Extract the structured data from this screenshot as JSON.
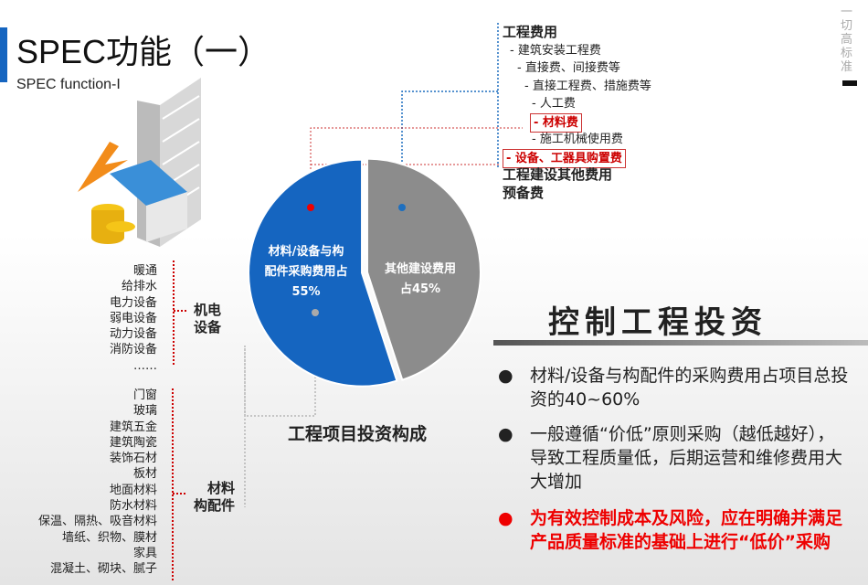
{
  "title": "SPEC功能（一）",
  "subtitle": "SPEC function-I",
  "slogan": "一切高标准",
  "cost_tree": [
    {
      "text": "工程费用",
      "style": "b",
      "indent": 0
    },
    {
      "text": "- 建筑安装工程费",
      "style": "",
      "indent": 1
    },
    {
      "text": "- 直接费、间接费等",
      "style": "",
      "indent": 2
    },
    {
      "text": "- 直接工程费、措施费等",
      "style": "",
      "indent": 3
    },
    {
      "text": "- 人工费",
      "style": "",
      "indent": 4
    },
    {
      "text": "- 材料费",
      "style": "r",
      "indent": 4
    },
    {
      "text": "- 施工机械使用费",
      "style": "",
      "indent": 4
    },
    {
      "text": "- 设备、工器具购置费",
      "style": "r",
      "indent": 0
    },
    {
      "text": "工程建设其他费用",
      "style": "b",
      "indent": 0
    },
    {
      "text": "预备费",
      "style": "b",
      "indent": 0
    }
  ],
  "groups": {
    "mep": {
      "label_1": "机电",
      "label_2": "设备",
      "items": [
        "暖通",
        "给排水",
        "电力设备",
        "弱电设备",
        "动力设备",
        "消防设备",
        "……"
      ]
    },
    "materials": {
      "label_1": "材料",
      "label_2": "构配件",
      "items": [
        "门窗",
        "玻璃",
        "建筑五金",
        "建筑陶瓷",
        "装饰石材",
        "板材",
        "地面材料",
        "防水材料",
        "保温、隔热、吸音材料",
        "墙纸、织物、膜材",
        "家具",
        "混凝土、砌块、腻子"
      ]
    }
  },
  "pie": {
    "title": "工程项目投资构成",
    "slices": [
      {
        "label_1": "材料/设备与构",
        "label_2": "配件采购费用占",
        "pct_label": "55%",
        "value": 55,
        "color": "#1565c0"
      },
      {
        "label_1": "其他建设费用",
        "label_2": "占45%",
        "value": 45,
        "color": "#8c8c8c"
      }
    ]
  },
  "control": {
    "title": "控制工程投资",
    "bullet": "●",
    "bullets": [
      "材料/设备与构配件的采购费用占项目总投资的40~60%",
      "一般遵循“价低”原则采购（越低越好），导致工程质量低，后期运营和维修费用大大增加"
    ],
    "highlight": "为有效控制成本及风险，应在明确并满足产品质量标准的基础上进行“低价”采购"
  }
}
